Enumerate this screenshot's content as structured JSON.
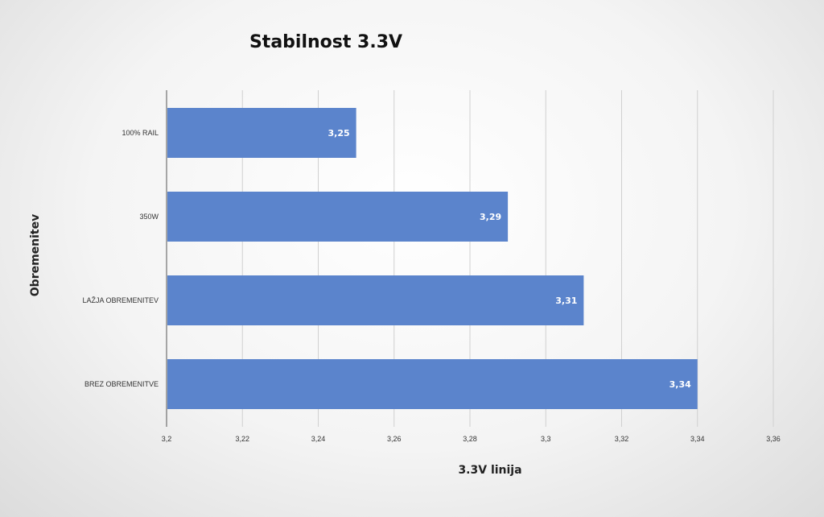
{
  "chart_data": {
    "type": "bar",
    "orientation": "horizontal",
    "title": "Stabilnost 3.3V",
    "xlabel": "3.3V linija",
    "ylabel": "Obremenitev",
    "categories": [
      "100% RAIL",
      "350W",
      "LAŽJA OBREMENITEV",
      "BREZ OBREMENITVE"
    ],
    "values": [
      3.25,
      3.29,
      3.31,
      3.34
    ],
    "value_labels": [
      "3,25",
      "3,29",
      "3,31",
      "3,34"
    ],
    "xlim": [
      3.2,
      3.36
    ],
    "xticks": [
      3.2,
      3.22,
      3.24,
      3.26,
      3.28,
      3.3,
      3.32,
      3.34,
      3.36
    ],
    "xtick_labels": [
      "3,2",
      "3,22",
      "3,24",
      "3,26",
      "3,28",
      "3,3",
      "3,32",
      "3,34",
      "3,36"
    ],
    "grid": true,
    "legend": "none",
    "bar_color": "#5b84cc"
  }
}
